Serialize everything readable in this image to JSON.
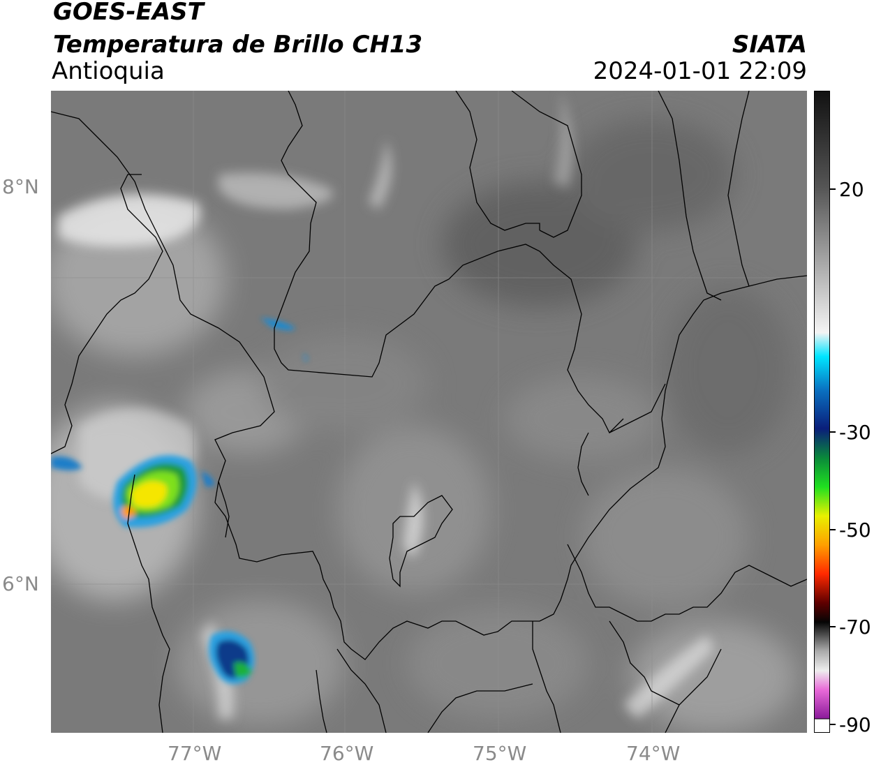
{
  "header": {
    "satellite": "GOES-EAST",
    "product": "Temperatura de Brillo CH13",
    "region": "Antioquia",
    "agency": "SIATA",
    "datetime": "2024-01-01 22:09"
  },
  "map": {
    "lon_range": [
      -77.95,
      -72.95
    ],
    "lat_range": [
      5.09,
      9.3
    ],
    "lat_labels": [
      {
        "value": 8,
        "label": "8°N"
      },
      {
        "value": 6,
        "label": "6°N"
      }
    ],
    "lon_labels": [
      {
        "value": -77,
        "label": "77°W"
      },
      {
        "value": -76,
        "label": "76°W"
      },
      {
        "value": -75,
        "label": "75°W"
      },
      {
        "value": -74,
        "label": "74°W"
      }
    ],
    "grid": true
  },
  "colorbar": {
    "range": [
      -90,
      40
    ],
    "tick_labels": [
      {
        "value": 20,
        "label": "20"
      },
      {
        "value": -30,
        "label": "-30"
      },
      {
        "value": -50,
        "label": "-50"
      },
      {
        "value": -70,
        "label": "-70"
      },
      {
        "value": -90,
        "label": "-90"
      }
    ],
    "stops": [
      {
        "value": 40,
        "color": "#111111"
      },
      {
        "value": 20,
        "color": "#555555"
      },
      {
        "value": -10,
        "color": "#f4f4f4"
      },
      {
        "value": -15,
        "color": "#00e5ff"
      },
      {
        "value": -22,
        "color": "#0a70c0"
      },
      {
        "value": -30,
        "color": "#0a1e7a"
      },
      {
        "value": -36,
        "color": "#0a8a3a"
      },
      {
        "value": -42,
        "color": "#20e020"
      },
      {
        "value": -48,
        "color": "#e8f000"
      },
      {
        "value": -54,
        "color": "#ffa000"
      },
      {
        "value": -60,
        "color": "#ff2a00"
      },
      {
        "value": -66,
        "color": "#600000"
      },
      {
        "value": -70,
        "color": "#050505"
      },
      {
        "value": -76,
        "color": "#aaaaaa"
      },
      {
        "value": -80,
        "color": "#eeeeee"
      },
      {
        "value": -84,
        "color": "#e86ad8"
      },
      {
        "value": -90,
        "color": "#8a1a9a"
      }
    ]
  }
}
